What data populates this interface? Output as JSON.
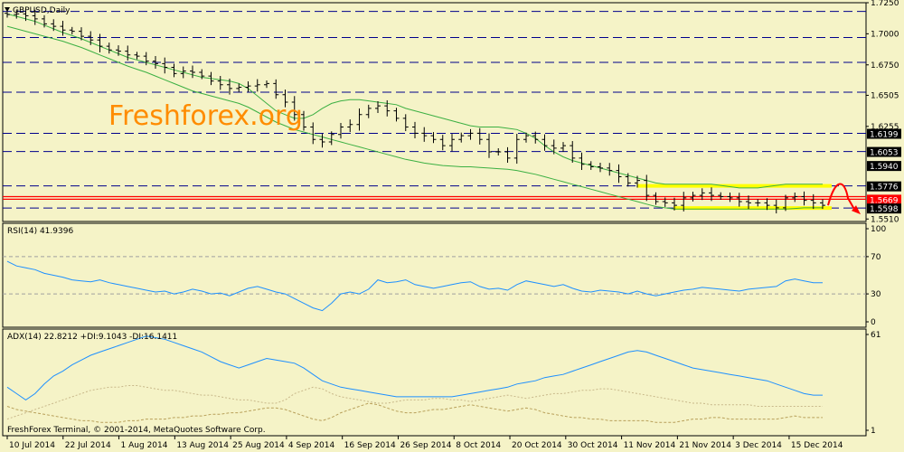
{
  "window": {
    "symbol_title": "GBPUSD,Daily",
    "watermark": "Freshforex.org",
    "footer": "FreshForex Terminal, © 2001-2014, MetaQuotes Software Corp."
  },
  "colors": {
    "background": "#f5f3c7",
    "frame": "#000000",
    "dashed_level": "#00008b",
    "ma_line": "#3cb043",
    "rsi_line": "#1e90ff",
    "adx_line": "#1e90ff",
    "di_plus": "#b8a05a",
    "di_minus": "#c8b88a",
    "highlight_band": "#ffff00",
    "red_level": "#ff0000",
    "forecast_arrow": "#ff0000",
    "price_box": "#000000",
    "price_box_red": "#ff0000"
  },
  "chart_data": [
    {
      "type": "candlestick",
      "name": "GBPUSD,Daily",
      "ylim": [
        1.549,
        1.725
      ],
      "y_ticks": [
        "1.7250",
        "1.7000",
        "1.6750",
        "1.6505",
        "1.6255",
        "1.6199",
        "1.6053",
        "1.5940",
        "1.5776",
        "1.5669",
        "1.5598",
        "1.5510"
      ],
      "x_ticks": [
        "10 Jul 2014",
        "22 Jul 2014",
        "1 Aug 2014",
        "13 Aug 2014",
        "25 Aug 2014",
        "4 Sep 2014",
        "16 Sep 2014",
        "26 Sep 2014",
        "8 Oct 2014",
        "20 Oct 2014",
        "30 Oct 2014",
        "11 Nov 2014",
        "21 Nov 2014",
        "3 Dec 2014",
        "15 Dec 2014"
      ],
      "boxed_levels": [
        {
          "label": "1.6199",
          "value": 1.6199,
          "style": "black"
        },
        {
          "label": "1.6053",
          "value": 1.6053,
          "style": "black"
        },
        {
          "label": "1.5940",
          "value": 1.594,
          "style": "black"
        },
        {
          "label": "1.5776",
          "value": 1.5776,
          "style": "black"
        },
        {
          "label": "1.5669",
          "value": 1.5669,
          "style": "red"
        },
        {
          "label": "1.5598",
          "value": 1.5598,
          "style": "black"
        }
      ],
      "dashed_levels": [
        1.718,
        1.697,
        1.677,
        1.653,
        1.6199,
        1.6053,
        1.5776,
        1.5598
      ],
      "red_levels": [
        1.569,
        1.5669
      ],
      "highlight_band": {
        "from_date": "13 Nov 2014",
        "to_date": "16 Dec 2014",
        "top": 1.5776,
        "bottom": 1.5598
      },
      "close": [
        1.7155,
        1.716,
        1.7145,
        1.712,
        1.708,
        1.706,
        1.703,
        1.702,
        1.698,
        1.695,
        1.69,
        1.687,
        1.686,
        1.683,
        1.682,
        1.678,
        1.676,
        1.673,
        1.668,
        1.67,
        1.669,
        1.666,
        1.662,
        1.659,
        1.656,
        1.657,
        1.658,
        1.659,
        1.66,
        1.651,
        1.645,
        1.635,
        1.625,
        1.615,
        1.613,
        1.619,
        1.625,
        1.627,
        1.635,
        1.64,
        1.642,
        1.638,
        1.632,
        1.625,
        1.62,
        1.618,
        1.615,
        1.61,
        1.615,
        1.618,
        1.62,
        1.615,
        1.605,
        1.605,
        1.6,
        1.615,
        1.618,
        1.615,
        1.61,
        1.608,
        1.61,
        1.6,
        1.595,
        1.593,
        1.592,
        1.59,
        1.585,
        1.58,
        1.582,
        1.57,
        1.565,
        1.564,
        1.562,
        1.568,
        1.57,
        1.572,
        1.57,
        1.569,
        1.568,
        1.565,
        1.564,
        1.564,
        1.562,
        1.56,
        1.568,
        1.569,
        1.566,
        1.564,
        1.562
      ],
      "upper_band": [
        1.716,
        1.714,
        1.712,
        1.71,
        1.707,
        1.704,
        1.701,
        1.6985,
        1.696,
        1.693,
        1.69,
        1.687,
        1.684,
        1.681,
        1.679,
        1.677,
        1.675,
        1.673,
        1.671,
        1.669,
        1.667,
        1.665,
        1.664,
        1.663,
        1.662,
        1.66,
        1.656,
        1.65,
        1.644,
        1.638,
        1.635,
        1.632,
        1.632,
        1.635,
        1.64,
        1.644,
        1.646,
        1.647,
        1.647,
        1.646,
        1.645,
        1.644,
        1.643,
        1.64,
        1.638,
        1.636,
        1.634,
        1.632,
        1.63,
        1.628,
        1.626,
        1.625,
        1.625,
        1.625,
        1.624,
        1.623,
        1.62,
        1.616,
        1.61,
        1.605,
        1.601,
        1.598,
        1.596,
        1.594,
        1.592,
        1.59,
        1.588,
        1.586,
        1.584,
        1.582,
        1.58,
        1.579,
        1.579,
        1.579,
        1.579,
        1.579,
        1.579,
        1.578,
        1.577,
        1.576,
        1.576,
        1.576,
        1.577,
        1.578,
        1.579,
        1.579,
        1.579,
        1.579,
        1.579
      ],
      "lower_band": [
        1.706,
        1.704,
        1.702,
        1.7,
        1.698,
        1.696,
        1.694,
        1.6915,
        1.689,
        1.686,
        1.683,
        1.68,
        1.677,
        1.674,
        1.6715,
        1.669,
        1.666,
        1.663,
        1.66,
        1.657,
        1.654,
        1.652,
        1.65,
        1.648,
        1.646,
        1.644,
        1.641,
        1.637,
        1.633,
        1.629,
        1.626,
        1.623,
        1.621,
        1.619,
        1.617,
        1.615,
        1.613,
        1.611,
        1.609,
        1.607,
        1.605,
        1.603,
        1.601,
        1.599,
        1.5975,
        1.596,
        1.595,
        1.594,
        1.5935,
        1.593,
        1.593,
        1.5925,
        1.592,
        1.5915,
        1.591,
        1.59,
        1.5885,
        1.587,
        1.585,
        1.583,
        1.581,
        1.579,
        1.577,
        1.575,
        1.573,
        1.571,
        1.569,
        1.567,
        1.565,
        1.563,
        1.561,
        1.56,
        1.559,
        1.559,
        1.559,
        1.559,
        1.559,
        1.559,
        1.559,
        1.559,
        1.559,
        1.559,
        1.559,
        1.559,
        1.559,
        1.5595,
        1.56,
        1.56,
        1.56
      ]
    },
    {
      "type": "line",
      "name": "RSI(14) 41.9396",
      "ylim": [
        0,
        100
      ],
      "y_ticks": [
        "100",
        "70",
        "30",
        "0"
      ],
      "levels": [
        70,
        30
      ],
      "values": [
        65,
        60,
        58,
        56,
        52,
        50,
        48,
        45,
        44,
        43,
        45,
        42,
        40,
        38,
        36,
        34,
        32,
        33,
        30,
        32,
        35,
        33,
        30,
        31,
        28,
        32,
        36,
        38,
        35,
        32,
        30,
        25,
        20,
        15,
        12,
        20,
        30,
        32,
        30,
        35,
        45,
        42,
        43,
        45,
        40,
        38,
        36,
        38,
        40,
        42,
        43,
        38,
        35,
        36,
        34,
        40,
        44,
        42,
        40,
        38,
        40,
        36,
        33,
        32,
        34,
        33,
        32,
        30,
        33,
        30,
        28,
        30,
        32,
        34,
        35,
        37,
        36,
        35,
        34,
        33,
        35,
        36,
        37,
        38,
        44,
        46,
        44,
        42,
        42
      ]
    },
    {
      "type": "line",
      "name": "ADX(14) 22.8212 +DI:9.1043 -DI:16.1411",
      "ylim": [
        1,
        61
      ],
      "y_ticks": [
        "61",
        "1"
      ],
      "series": [
        {
          "name": "ADX",
          "values": [
            28,
            24,
            20,
            24,
            30,
            35,
            38,
            42,
            45,
            48,
            50,
            52,
            54,
            56,
            58,
            60,
            59,
            58,
            56,
            54,
            52,
            50,
            47,
            44,
            42,
            40,
            42,
            44,
            46,
            45,
            44,
            43,
            40,
            36,
            32,
            30,
            28,
            27,
            26,
            25,
            24,
            23,
            22,
            22,
            22,
            22,
            22,
            22,
            22,
            23,
            24,
            25,
            26,
            27,
            28,
            30,
            31,
            32,
            34,
            35,
            36,
            38,
            40,
            42,
            44,
            46,
            48,
            50,
            51,
            50,
            48,
            46,
            44,
            42,
            40,
            39,
            38,
            37,
            36,
            35,
            34,
            33,
            32,
            30,
            28,
            26,
            24,
            23,
            23
          ]
        },
        {
          "name": "+DI",
          "values": [
            16,
            14,
            13,
            12,
            11,
            10,
            9,
            8,
            7,
            7,
            6,
            6,
            6,
            7,
            7,
            8,
            8,
            8,
            9,
            9,
            10,
            10,
            11,
            11,
            12,
            12,
            13,
            14,
            15,
            15,
            14,
            12,
            10,
            8,
            7,
            9,
            12,
            14,
            16,
            18,
            17,
            15,
            13,
            12,
            12,
            13,
            14,
            14,
            15,
            16,
            17,
            16,
            15,
            14,
            13,
            14,
            15,
            14,
            12,
            11,
            10,
            9,
            9,
            8,
            8,
            7,
            7,
            7,
            7,
            7,
            6,
            6,
            6,
            7,
            8,
            8,
            9,
            9,
            8,
            8,
            8,
            8,
            8,
            8,
            9,
            10,
            9,
            9,
            9
          ]
        },
        {
          "name": "-DI",
          "values": [
            8,
            10,
            12,
            14,
            16,
            18,
            20,
            22,
            24,
            26,
            27,
            28,
            28,
            29,
            29,
            28,
            27,
            26,
            26,
            25,
            24,
            23,
            23,
            22,
            21,
            20,
            20,
            19,
            18,
            18,
            20,
            24,
            26,
            28,
            27,
            24,
            22,
            21,
            20,
            19,
            18,
            18,
            19,
            20,
            20,
            20,
            21,
            21,
            20,
            20,
            19,
            20,
            21,
            22,
            23,
            22,
            21,
            22,
            23,
            24,
            24,
            25,
            26,
            26,
            27,
            27,
            26,
            25,
            24,
            23,
            22,
            21,
            20,
            19,
            18,
            18,
            17,
            17,
            17,
            17,
            17,
            16,
            16,
            16,
            16,
            16,
            16,
            16,
            16
          ]
        }
      ]
    }
  ]
}
